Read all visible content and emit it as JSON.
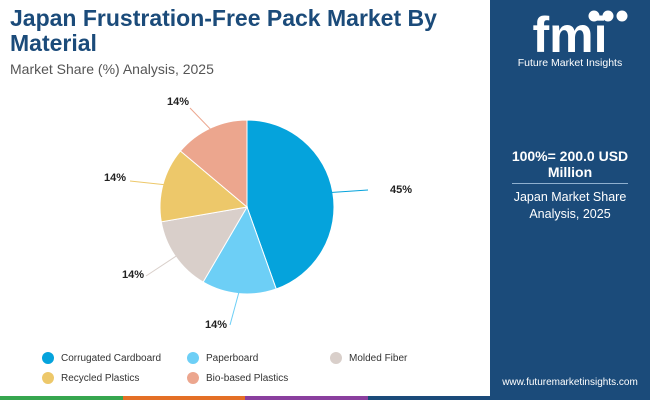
{
  "header": {
    "title": "Japan Frustration-Free Pack Market By Material",
    "subtitle": "Market Share (%) Analysis, 2025"
  },
  "chart_data": {
    "type": "pie",
    "title": "Japan Frustration-Free Pack Market By Material",
    "subtitle": "Market Share (%) Analysis, 2025",
    "categories": [
      "Corrugated Cardboard",
      "Paperboard",
      "Molded Fiber",
      "Recycled Plastics",
      "Bio-based Plastics"
    ],
    "values": [
      45,
      14,
      14,
      14,
      14
    ],
    "labels": [
      "45%",
      "14%",
      "14%",
      "14%",
      "14%"
    ],
    "colors": [
      "#05a3dc",
      "#6dcff6",
      "#d9cfca",
      "#edc86a",
      "#eca68e"
    ],
    "legend_position": "bottom"
  },
  "sidebar": {
    "brand": "Future Market Insights",
    "logo_letters": "fmi",
    "total": "100%= 200.0 USD Million",
    "note": "Japan Market Share Analysis, 2025",
    "url": "www.futuremarketinsights.com"
  },
  "footer_colors": [
    "#36a64f",
    "#e46f26",
    "#8a3f9e",
    "#1b4b7a"
  ]
}
